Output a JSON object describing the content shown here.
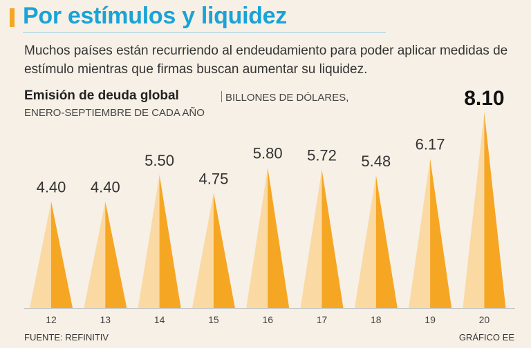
{
  "header": {
    "title": "Por estímulos y liquidez",
    "subtitle": "Muchos países están recurriendo al endeudamiento para poder aplicar medidas de estímulo mientras que firmas buscan aumentar su liquidez."
  },
  "chart_data": {
    "type": "bar",
    "title": "Emisión de deuda global",
    "units_line1": "BILLONES DE DÓLARES,",
    "units_line2": "ENERO-SEPTIEMBRE DE CADA AÑO",
    "categories": [
      "12",
      "13",
      "14",
      "15",
      "16",
      "17",
      "18",
      "19",
      "20"
    ],
    "values": [
      4.4,
      4.4,
      5.5,
      4.75,
      5.8,
      5.72,
      5.48,
      6.17,
      8.1
    ],
    "labels": [
      "4.40",
      "4.40",
      "5.50",
      "4.75",
      "5.80",
      "5.72",
      "5.48",
      "6.17",
      "8.10"
    ],
    "highlight_index": 8,
    "ylim": [
      0,
      8.1
    ],
    "grid": false
  },
  "colors": {
    "title": "#1aa3d6",
    "accent": "#f5a623",
    "bar_light": "#fbd9a3",
    "bar_dark": "#f5a623",
    "axis": "#bbbbbb"
  },
  "footer": {
    "source": "FUENTE: REFINITIV",
    "credit": "GRÁFICO EE"
  }
}
